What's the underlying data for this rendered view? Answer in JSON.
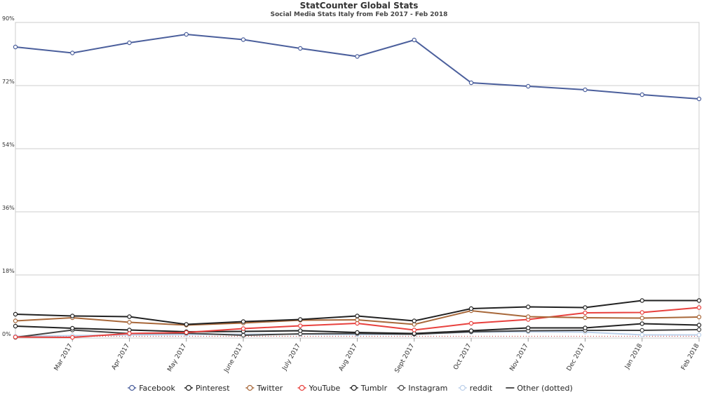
{
  "chart_data": {
    "type": "line",
    "title": "StatCounter Global Stats",
    "subtitle": "Social Media Stats Italy from Feb 2017 - Feb 2018",
    "xlabel": "",
    "ylabel": "",
    "ylim": [
      0,
      90
    ],
    "yticks": [
      "0%",
      "18%",
      "36%",
      "54%",
      "72%",
      "90%"
    ],
    "grid": true,
    "legend_position": "bottom",
    "categories": [
      "Feb 2017",
      "Mar 2017",
      "Apr 2017",
      "May 2017",
      "June 2017",
      "July 2017",
      "Aug 2017",
      "Sept 2017",
      "Oct 2017",
      "Nov 2017",
      "Dec 2017",
      "Jan 2018",
      "Feb 2018"
    ],
    "xtick_labels": [
      "Mar 2017",
      "Apr 2017",
      "May 2017",
      "June 2017",
      "July 2017",
      "Aug 2017",
      "Sept 2017",
      "Oct 2017",
      "Nov 2017",
      "Dec 2017",
      "Jan 2018",
      "Feb 2018"
    ],
    "series": [
      {
        "name": "Facebook",
        "color": "#4b5f9c",
        "dotted": false,
        "values": [
          83,
          81.3,
          84.2,
          86.6,
          85.1,
          82.6,
          80.3,
          85,
          72.8,
          71.8,
          70.8,
          69.4,
          68.2
        ]
      },
      {
        "name": "Pinterest",
        "color": "#222222",
        "dotted": false,
        "values": [
          6.8,
          6.3,
          6.1,
          3.9,
          4.7,
          5.3,
          6.3,
          4.9,
          8.4,
          8.9,
          8.7,
          10.7,
          10.7
        ]
      },
      {
        "name": "Twitter",
        "color": "#a8683a",
        "dotted": false,
        "values": [
          4.9,
          5.8,
          4.5,
          3.7,
          4.3,
          5.1,
          5.2,
          3.9,
          7.8,
          6.1,
          5.8,
          5.7,
          6
        ]
      },
      {
        "name": "YouTube",
        "color": "#e8413e",
        "dotted": false,
        "values": [
          0.3,
          0.2,
          1.3,
          1.6,
          2.7,
          3.5,
          4.2,
          2.3,
          4.2,
          5.3,
          7.2,
          7.3,
          8.7
        ]
      },
      {
        "name": "Tumblr",
        "color": "#222222",
        "dotted": false,
        "values": [
          3.4,
          2.8,
          2.3,
          1.8,
          1.9,
          2.1,
          1.6,
          1.3,
          2.1,
          2.9,
          2.9,
          4.1,
          3.7
        ]
      },
      {
        "name": "Instagram",
        "color": "#444444",
        "dotted": false,
        "values": [
          0.2,
          2.3,
          1.3,
          1.4,
          0.8,
          1.2,
          1.3,
          1.1,
          1.8,
          2.1,
          2.2,
          2.2,
          2.4
        ]
      },
      {
        "name": "reddit",
        "color": "#bcd0ea",
        "dotted": false,
        "values": [
          0.5,
          0.7,
          0.9,
          1,
          1.1,
          1.1,
          1,
          1.1,
          1.7,
          1.8,
          1.7,
          0.9,
          0.9
        ]
      },
      {
        "name": "Other (dotted)",
        "color": "#cc5555",
        "dotted": true,
        "values": [
          0.5,
          0.5,
          0.5,
          0.5,
          0.5,
          0.5,
          0.5,
          0.5,
          0.5,
          0.5,
          0.5,
          0.5,
          0.5
        ]
      }
    ]
  },
  "legend": [
    {
      "label": "Facebook",
      "color": "#4b5f9c",
      "marker": "circle"
    },
    {
      "label": "Pinterest",
      "color": "#222222",
      "marker": "circle"
    },
    {
      "label": "Twitter",
      "color": "#a8683a",
      "marker": "circle"
    },
    {
      "label": "YouTube",
      "color": "#e8413e",
      "marker": "circle"
    },
    {
      "label": "Tumblr",
      "color": "#222222",
      "marker": "circle"
    },
    {
      "label": "Instagram",
      "color": "#444444",
      "marker": "circle"
    },
    {
      "label": "reddit",
      "color": "#bcd0ea",
      "marker": "circle"
    },
    {
      "label": "Other (dotted)",
      "color": "#555555",
      "marker": "line"
    }
  ]
}
